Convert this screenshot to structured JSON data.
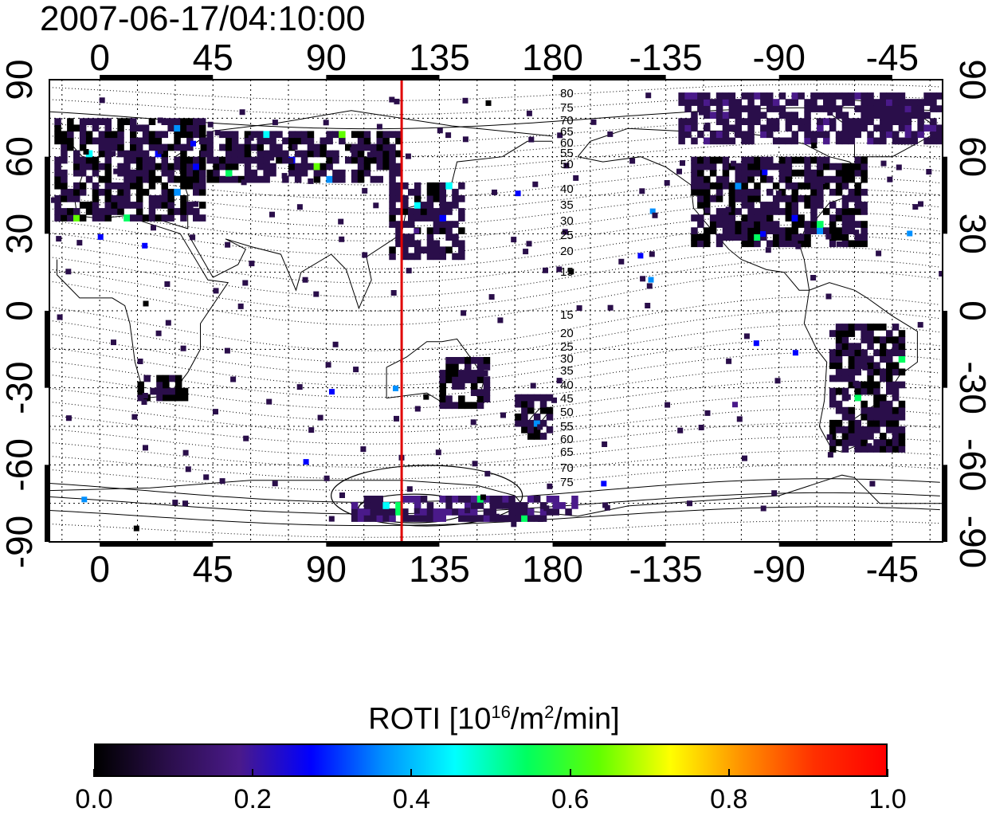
{
  "title": "2007-06-17/04:10:00",
  "lon_ticks": [
    {
      "value": 0,
      "label": "0"
    },
    {
      "value": 45,
      "label": "45"
    },
    {
      "value": 90,
      "label": "90"
    },
    {
      "value": 135,
      "label": "135"
    },
    {
      "value": 180,
      "label": "180"
    },
    {
      "value": 225,
      "label": "-135"
    },
    {
      "value": 270,
      "label": "-90"
    },
    {
      "value": 315,
      "label": "-45"
    }
  ],
  "lat_ticks": [
    {
      "value": 90,
      "label": "90"
    },
    {
      "value": 60,
      "label": "60"
    },
    {
      "value": 30,
      "label": "30"
    },
    {
      "value": 0,
      "label": "0"
    },
    {
      "value": -30,
      "label": "-30"
    },
    {
      "value": -60,
      "label": "-60"
    },
    {
      "value": -90,
      "label": "-90"
    }
  ],
  "lon_range": [
    -20,
    335
  ],
  "lat_range": [
    -90,
    90
  ],
  "marker_longitude": 120,
  "marker_color": "#e00000",
  "magnetic_latitude_labels": {
    "north": [
      "80",
      "75",
      "70",
      "65",
      "60",
      "55",
      "50",
      "40",
      "35",
      "30",
      "25",
      "20",
      "15"
    ],
    "south": [
      "15",
      "20",
      "25",
      "30",
      "35",
      "40",
      "45",
      "50",
      "55",
      "60",
      "65",
      "70",
      "75"
    ]
  },
  "colorbar": {
    "title_main": "ROTI  [10",
    "title_sup1": "16",
    "title_mid": "/m",
    "title_sup2": "2",
    "title_end": "/min]",
    "min": 0.0,
    "max": 1.0,
    "tick_labels": [
      "0.0",
      "0.2",
      "0.4",
      "0.6",
      "0.8",
      "1.0"
    ],
    "colors": [
      "#000000",
      "#2a0e4a",
      "#4a1a8a",
      "#0000ff",
      "#0090ff",
      "#00ffff",
      "#00ff60",
      "#60ff00",
      "#ffff00",
      "#ff9000",
      "#ff3000",
      "#ff0000"
    ]
  },
  "data_regions": [
    {
      "name": "europe-asia-north",
      "lon": [
        -18,
        40
      ],
      "lat": [
        35,
        75
      ],
      "roti": 0.05
    },
    {
      "name": "siberia",
      "lon": [
        40,
        120
      ],
      "lat": [
        50,
        70
      ],
      "roti": 0.06
    },
    {
      "name": "east-asia",
      "lon": [
        115,
        145
      ],
      "lat": [
        20,
        50
      ],
      "roti": 0.07
    },
    {
      "name": "north-america",
      "lon": [
        235,
        305
      ],
      "lat": [
        25,
        60
      ],
      "roti": 0.05
    },
    {
      "name": "south-africa",
      "lon": [
        15,
        35
      ],
      "lat": [
        -35,
        -25
      ],
      "roti": 0.04
    },
    {
      "name": "australia",
      "lon": [
        135,
        155
      ],
      "lat": [
        -38,
        -18
      ],
      "roti": 0.05
    },
    {
      "name": "new-zealand",
      "lon": [
        165,
        180
      ],
      "lat": [
        -50,
        -33
      ],
      "roti": 0.05
    },
    {
      "name": "south-america",
      "lon": [
        290,
        320
      ],
      "lat": [
        -55,
        -5
      ],
      "roti": 0.05
    },
    {
      "name": "antarctica",
      "lon": [
        100,
        190
      ],
      "lat": [
        -82,
        -72
      ],
      "roti": 0.12
    },
    {
      "name": "arctic-canada",
      "lon": [
        230,
        335
      ],
      "lat": [
        65,
        85
      ],
      "roti": 0.1
    }
  ]
}
